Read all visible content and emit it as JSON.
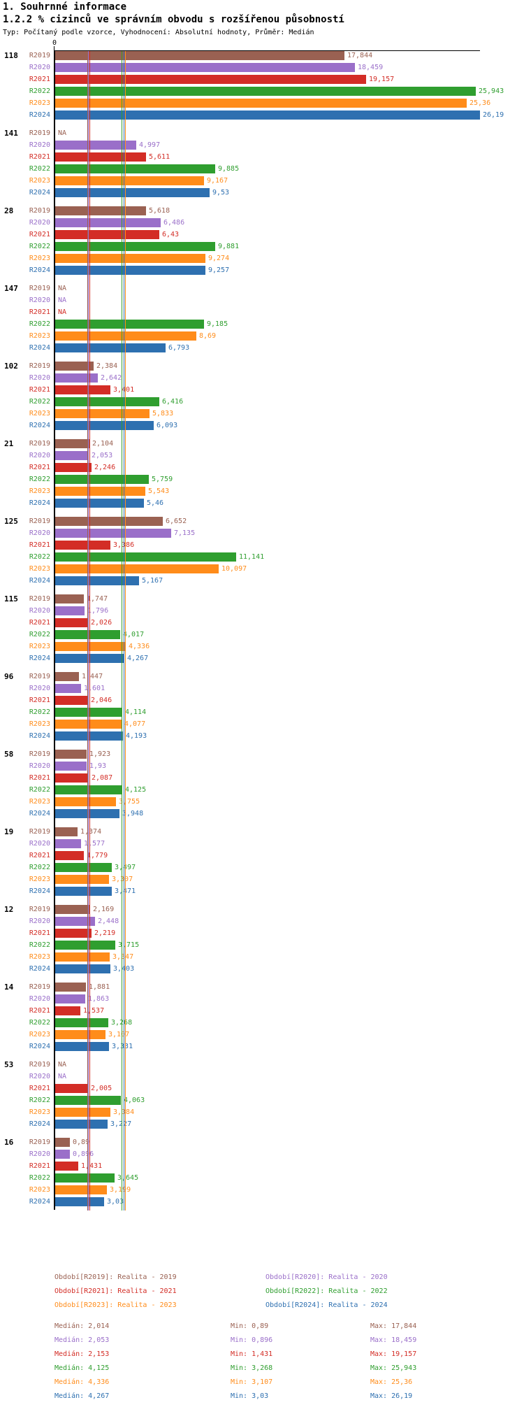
{
  "header": {
    "title_line1": "1. Souhrnné informace",
    "title_line2": "1.2.2 % cizinců ve správním obvodu s rozšířenou působností",
    "subtitle": "Typ: Počítaný podle vzorce, Vyhodnocení: Absolutní hodnoty, Průměr: Medián"
  },
  "chart_data": {
    "type": "bar",
    "orientation": "horizontal",
    "grid": false,
    "na_label": "NA",
    "axis": {
      "zero_label": "0",
      "max": 26.19
    },
    "series": [
      {
        "key": "R2019",
        "color": "#9a6152",
        "legend": "Období[R2019]: Realita - 2019",
        "median_line": 2.014
      },
      {
        "key": "R2020",
        "color": "#9a6fc9",
        "legend": "Období[R2020]: Realita - 2020",
        "median_line": 2.053
      },
      {
        "key": "R2021",
        "color": "#d32d26",
        "legend": "Období[R2021]: Realita - 2021",
        "median_line": 2.153
      },
      {
        "key": "R2022",
        "color": "#2f9e2f",
        "legend": "Období[R2022]: Realita - 2022",
        "median_line": 4.125
      },
      {
        "key": "R2023",
        "color": "#ff8c1a",
        "legend": "Období[R2023]: Realita - 2023",
        "median_line": 4.336
      },
      {
        "key": "R2024",
        "color": "#2e70b0",
        "legend": "Období[R2024]: Realita - 2024",
        "median_line": 4.267
      }
    ],
    "groups": [
      {
        "id": "118",
        "values": [
          "17,844",
          "18,459",
          "19,157",
          "25,943",
          "25,36",
          "26,19"
        ]
      },
      {
        "id": "141",
        "values": [
          null,
          "4,997",
          "5,611",
          "9,885",
          "9,167",
          "9,53"
        ]
      },
      {
        "id": "28",
        "values": [
          "5,618",
          "6,486",
          "6,43",
          "9,881",
          "9,274",
          "9,257"
        ]
      },
      {
        "id": "147",
        "values": [
          null,
          null,
          null,
          "9,185",
          "8,69",
          "6,793"
        ]
      },
      {
        "id": "102",
        "values": [
          "2,384",
          "2,642",
          "3,401",
          "6,416",
          "5,833",
          "6,093"
        ]
      },
      {
        "id": "21",
        "values": [
          "2,104",
          "2,053",
          "2,246",
          "5,759",
          "5,543",
          "5,46"
        ]
      },
      {
        "id": "125",
        "values": [
          "6,652",
          "7,135",
          "3,386",
          "11,141",
          "10,097",
          "5,167"
        ]
      },
      {
        "id": "115",
        "values": [
          "1,747",
          "1,796",
          "2,026",
          "4,017",
          "4,336",
          "4,267"
        ]
      },
      {
        "id": "96",
        "values": [
          "1,447",
          "1,601",
          "2,046",
          "4,114",
          "4,077",
          "4,193"
        ]
      },
      {
        "id": "58",
        "values": [
          "1,923",
          "1,93",
          "2,087",
          "4,125",
          "3,755",
          "3,948"
        ]
      },
      {
        "id": "19",
        "values": [
          "1,374",
          "1,577",
          "1,779",
          "3,497",
          "3,307",
          "3,471"
        ]
      },
      {
        "id": "12",
        "values": [
          "2,169",
          "2,448",
          "2,219",
          "3,715",
          "3,347",
          "3,403"
        ]
      },
      {
        "id": "14",
        "values": [
          "1,881",
          "1,863",
          "1,537",
          "3,268",
          "3,107",
          "3,331"
        ]
      },
      {
        "id": "53",
        "values": [
          null,
          null,
          "2,005",
          "4,063",
          "3,384",
          "3,227"
        ]
      },
      {
        "id": "16",
        "values": [
          "0,89",
          "0,896",
          "1,431",
          "3,645",
          "3,199",
          "3,03"
        ]
      }
    ],
    "stats_labels": {
      "median": "Medián",
      "min": "Min",
      "max": "Max"
    },
    "stats": [
      {
        "key": "R2019",
        "median": "2,014",
        "min": "0,89",
        "max": "17,844"
      },
      {
        "key": "R2020",
        "median": "2,053",
        "min": "0,896",
        "max": "18,459"
      },
      {
        "key": "R2021",
        "median": "2,153",
        "min": "1,431",
        "max": "19,157"
      },
      {
        "key": "R2022",
        "median": "4,125",
        "min": "3,268",
        "max": "25,943"
      },
      {
        "key": "R2023",
        "median": "4,336",
        "min": "3,107",
        "max": "25,36"
      },
      {
        "key": "R2024",
        "median": "4,267",
        "min": "3,03",
        "max": "26,19"
      }
    ]
  }
}
